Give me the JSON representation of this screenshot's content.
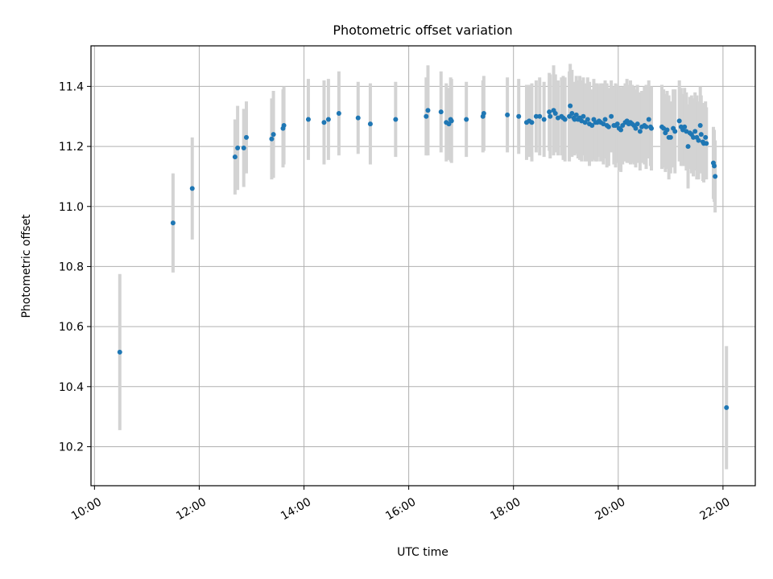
{
  "chart_data": {
    "type": "scatter",
    "title": "Photometric offset variation",
    "xlabel": "UTC time",
    "ylabel": "Photometric offset",
    "x_ticks": [
      "10:00",
      "12:00",
      "14:00",
      "16:00",
      "18:00",
      "20:00",
      "22:00"
    ],
    "y_ticks": [
      "10.2",
      "10.4",
      "10.6",
      "10.8",
      "11.0",
      "11.2",
      "11.4"
    ],
    "xlim": [
      "09:56",
      "22:37"
    ],
    "ylim": [
      10.07,
      11.535
    ],
    "grid": true,
    "colors": {
      "points": "#1f77b4",
      "errorbars": "#d3d3d3",
      "grid": "#b0b0b0"
    },
    "series": [
      {
        "x": [
          "10:29",
          "11:30",
          "11:52",
          "12:41",
          "12:44",
          "12:51",
          "12:54",
          "13:23",
          "13:25",
          "13:36",
          "13:37",
          "14:05",
          "14:23",
          "14:28",
          "14:40",
          "15:02",
          "15:16",
          "15:45",
          "16:20",
          "16:22",
          "16:37",
          "16:43",
          "16:46",
          "16:48",
          "16:49",
          "17:06",
          "17:25",
          "17:26",
          "17:53",
          "18:06",
          "18:15",
          "18:18",
          "18:21",
          "18:26",
          "18:30",
          "18:35",
          "18:41",
          "18:42",
          "18:46",
          "18:48",
          "18:51",
          "18:55",
          "18:57",
          "18:59",
          "19:04",
          "19:05",
          "19:07",
          "19:09",
          "19:10",
          "19:12",
          "19:14",
          "19:16",
          "19:18",
          "19:20",
          "19:22",
          "19:25",
          "19:27",
          "19:30",
          "19:32",
          "19:34",
          "19:36",
          "19:38",
          "19:40",
          "19:43",
          "19:45",
          "19:47",
          "19:49",
          "19:52",
          "19:55",
          "19:57",
          "19:59",
          "20:01",
          "20:03",
          "20:05",
          "20:08",
          "20:10",
          "20:12",
          "20:14",
          "20:16",
          "20:18",
          "20:20",
          "20:22",
          "20:25",
          "20:27",
          "20:30",
          "20:32",
          "20:35",
          "20:37",
          "20:38",
          "20:50",
          "20:52",
          "20:54",
          "20:56",
          "20:58",
          "21:00",
          "21:03",
          "21:05",
          "21:10",
          "21:12",
          "21:14",
          "21:16",
          "21:18",
          "21:20",
          "21:22",
          "21:24",
          "21:26",
          "21:28",
          "21:30",
          "21:32",
          "21:34",
          "21:35",
          "21:37",
          "21:38",
          "21:40",
          "21:41",
          "21:49",
          "21:50",
          "21:51",
          "22:04"
        ],
        "y": [
          10.515,
          10.945,
          11.06,
          11.165,
          11.195,
          11.195,
          11.23,
          11.225,
          11.24,
          11.26,
          11.27,
          11.29,
          11.28,
          11.29,
          11.31,
          11.295,
          11.275,
          11.29,
          11.3,
          11.32,
          11.315,
          11.28,
          11.275,
          11.29,
          11.285,
          11.29,
          11.3,
          11.31,
          11.305,
          11.3,
          11.28,
          11.285,
          11.28,
          11.3,
          11.3,
          11.29,
          11.315,
          11.3,
          11.32,
          11.31,
          11.295,
          11.3,
          11.295,
          11.29,
          11.3,
          11.335,
          11.31,
          11.295,
          11.29,
          11.305,
          11.29,
          11.295,
          11.285,
          11.3,
          11.28,
          11.29,
          11.275,
          11.27,
          11.29,
          11.28,
          11.28,
          11.285,
          11.28,
          11.275,
          11.29,
          11.27,
          11.265,
          11.3,
          11.27,
          11.27,
          11.275,
          11.26,
          11.255,
          11.27,
          11.28,
          11.285,
          11.275,
          11.28,
          11.275,
          11.27,
          11.26,
          11.275,
          11.25,
          11.265,
          11.27,
          11.265,
          11.29,
          11.265,
          11.26,
          11.265,
          11.26,
          11.245,
          11.255,
          11.23,
          11.23,
          11.26,
          11.25,
          11.285,
          11.265,
          11.255,
          11.265,
          11.25,
          11.2,
          11.245,
          11.24,
          11.23,
          11.25,
          11.23,
          11.22,
          11.27,
          11.24,
          11.215,
          11.21,
          11.23,
          11.21,
          11.145,
          11.135,
          11.1,
          10.33
        ],
        "err": [
          0.26,
          0.165,
          0.17,
          0.125,
          0.14,
          0.13,
          0.12,
          0.135,
          0.145,
          0.13,
          0.13,
          0.135,
          0.14,
          0.135,
          0.14,
          0.12,
          0.135,
          0.125,
          0.13,
          0.15,
          0.135,
          0.13,
          0.12,
          0.14,
          0.14,
          0.125,
          0.12,
          0.125,
          0.125,
          0.125,
          0.125,
          0.12,
          0.13,
          0.12,
          0.13,
          0.125,
          0.13,
          0.14,
          0.15,
          0.13,
          0.125,
          0.13,
          0.14,
          0.14,
          0.15,
          0.14,
          0.145,
          0.12,
          0.12,
          0.13,
          0.13,
          0.14,
          0.135,
          0.13,
          0.13,
          0.14,
          0.14,
          0.12,
          0.135,
          0.13,
          0.13,
          0.12,
          0.13,
          0.135,
          0.13,
          0.14,
          0.13,
          0.12,
          0.13,
          0.14,
          0.13,
          0.14,
          0.14,
          0.13,
          0.13,
          0.14,
          0.13,
          0.14,
          0.13,
          0.13,
          0.13,
          0.13,
          0.13,
          0.12,
          0.13,
          0.14,
          0.13,
          0.13,
          0.14,
          0.14,
          0.13,
          0.13,
          0.13,
          0.14,
          0.12,
          0.13,
          0.14,
          0.135,
          0.13,
          0.12,
          0.13,
          0.13,
          0.14,
          0.12,
          0.13,
          0.13,
          0.13,
          0.14,
          0.13,
          0.13,
          0.13,
          0.13,
          0.13,
          0.12,
          0.12,
          0.12,
          0.12,
          0.12,
          0.205
        ]
      }
    ]
  }
}
